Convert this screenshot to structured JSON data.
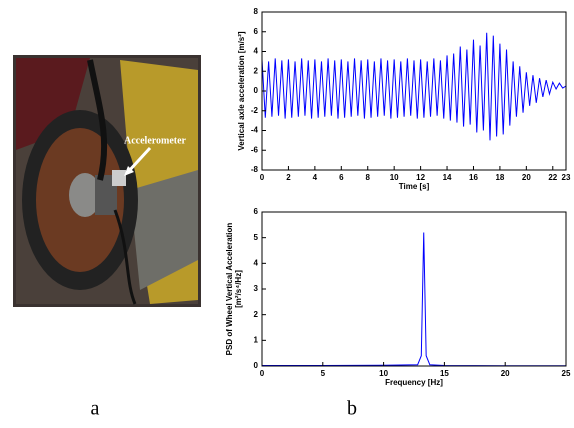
{
  "photo": {
    "annotation": "Accelerometer"
  },
  "panel_labels": [
    "a",
    "b"
  ],
  "chart_data": [
    {
      "type": "line",
      "ylabel": "Vertical axle acceleration [m/s²]",
      "xlabel": "Time [s]",
      "color": "#0000ff",
      "xlim": [
        0,
        23
      ],
      "xticks": [
        0,
        2,
        4,
        6,
        8,
        10,
        12,
        14,
        16,
        18,
        20,
        22,
        23
      ],
      "ylim": [
        -8,
        8
      ],
      "yticks": [
        -8,
        -6,
        -4,
        -2,
        0,
        2,
        4,
        6,
        8
      ],
      "x": [
        0,
        0.25,
        0.5,
        0.75,
        1,
        1.25,
        1.5,
        1.75,
        2,
        2.25,
        2.5,
        2.75,
        3,
        3.25,
        3.5,
        3.75,
        4,
        4.25,
        4.5,
        4.75,
        5,
        5.25,
        5.5,
        5.75,
        6,
        6.25,
        6.5,
        6.75,
        7,
        7.25,
        7.5,
        7.75,
        8,
        8.25,
        8.5,
        8.75,
        9,
        9.25,
        9.5,
        9.75,
        10,
        10.25,
        10.5,
        10.75,
        11,
        11.25,
        11.5,
        11.75,
        12,
        12.25,
        12.5,
        12.75,
        13,
        13.25,
        13.5,
        13.75,
        14,
        14.25,
        14.5,
        14.75,
        15,
        15.25,
        15.5,
        15.75,
        16,
        16.25,
        16.5,
        16.75,
        17,
        17.25,
        17.5,
        17.75,
        18,
        18.25,
        18.5,
        18.75,
        19,
        19.25,
        19.5,
        19.75,
        20,
        20.25,
        20.5,
        20.75,
        21,
        21.25,
        21.5,
        21.75,
        22,
        22.25,
        22.5,
        22.75,
        23
      ],
      "values": [
        3.2,
        -2.7,
        3.0,
        -2.6,
        3.3,
        -2.5,
        3.1,
        -2.8,
        3.2,
        -2.7,
        3.0,
        -2.6,
        3.3,
        -2.5,
        3.1,
        -2.8,
        3.2,
        -2.7,
        3.0,
        -2.6,
        3.3,
        -2.5,
        3.1,
        -2.8,
        3.2,
        -2.7,
        3.0,
        -2.6,
        3.3,
        -2.5,
        3.1,
        -2.8,
        3.2,
        -2.7,
        3.0,
        -2.6,
        3.3,
        -2.5,
        3.1,
        -2.8,
        3.2,
        -2.7,
        3.0,
        -2.6,
        3.3,
        -2.5,
        3.1,
        -2.8,
        3.2,
        -2.7,
        3.0,
        -2.6,
        3.3,
        -2.5,
        3.1,
        -2.8,
        3.6,
        -3.0,
        3.8,
        -3.2,
        4.5,
        -3.6,
        4.2,
        -3.4,
        5.2,
        -4.2,
        4.6,
        -4.0,
        5.9,
        -5.0,
        5.6,
        -4.6,
        4.8,
        -4.4,
        4.2,
        -3.5,
        3.0,
        -2.6,
        2.5,
        -2.2,
        1.9,
        -1.5,
        1.6,
        -1.2,
        1.3,
        -0.6,
        1.1,
        -0.3,
        0.9,
        0.2,
        0.8,
        0.3,
        0.5
      ]
    },
    {
      "type": "line",
      "ylabel": [
        "PSD of Wheel Vertical Acceleration",
        "[m²/s⁴/Hz]"
      ],
      "xlabel": "Frequency [Hz]",
      "color": "#0000ff",
      "xlim": [
        0,
        25
      ],
      "xticks": [
        0,
        5,
        10,
        15,
        20,
        25
      ],
      "ylim": [
        0,
        6
      ],
      "yticks": [
        0,
        1,
        2,
        3,
        4,
        5,
        6
      ],
      "x": [
        0,
        5,
        10,
        12.8,
        13.1,
        13.3,
        13.5,
        13.8,
        15,
        20,
        25
      ],
      "values": [
        0.02,
        0.02,
        0.03,
        0.05,
        0.4,
        5.2,
        0.4,
        0.05,
        0.02,
        0.01,
        0.01
      ]
    }
  ]
}
